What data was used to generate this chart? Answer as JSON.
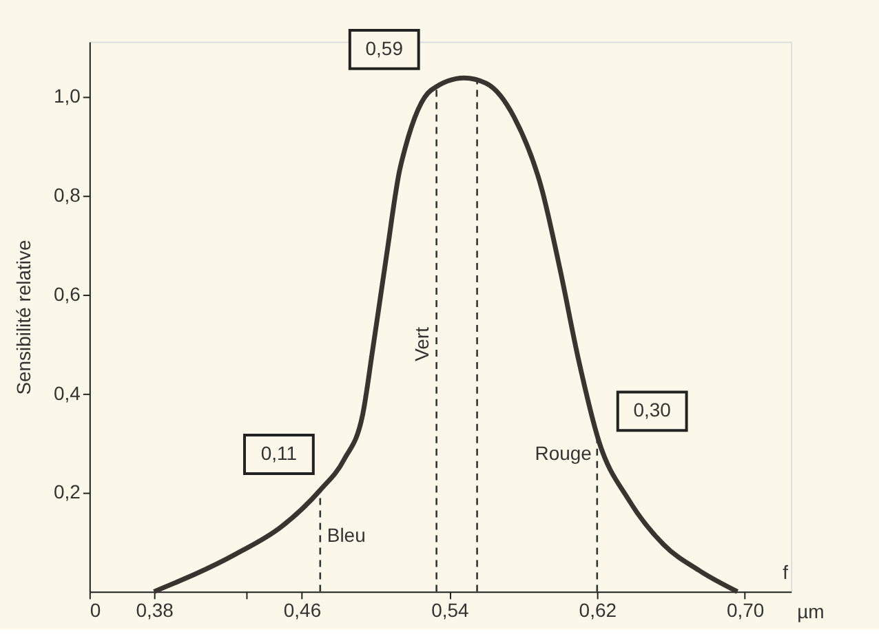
{
  "chart_data": {
    "type": "line",
    "ylabel": "Sensibilité relative",
    "xlabel": "µm",
    "x": [
      0.38,
      0.4244,
      0.449,
      0.47,
      0.483,
      0.493,
      0.4985,
      0.506,
      0.513,
      0.516,
      0.53,
      0.548,
      0.56,
      0.575,
      0.59,
      0.6,
      0.61,
      0.621,
      0.637,
      0.656,
      0.676,
      0.696
    ],
    "series": [
      {
        "color": "#3a3430",
        "values": [
          0.0,
          0.076,
          0.131,
          0.205,
          0.267,
          0.357,
          0.49,
          0.68,
          0.85,
          0.895,
          1.012,
          1.037,
          1.026,
          0.958,
          0.813,
          0.649,
          0.467,
          0.303,
          0.186,
          0.095,
          0.041,
          0.0
        ]
      }
    ],
    "xlim": [
      0.345,
      0.725
    ],
    "xticks": [
      {
        "value": 0.345,
        "label": "0"
      },
      {
        "value": 0.38,
        "label": "0,38"
      },
      {
        "value": 0.43,
        "label": null
      },
      {
        "value": 0.46,
        "label": "0,46"
      },
      {
        "value": 0.54,
        "label": "0,54"
      },
      {
        "value": 0.62,
        "label": "0,62"
      },
      {
        "value": 0.7,
        "label": "0,70"
      }
    ],
    "ylim": [
      0,
      1.11
    ],
    "yticks": [
      {
        "value": 0.2,
        "label": "0,2"
      },
      {
        "value": 0.4,
        "label": "0,4"
      },
      {
        "value": 0.6,
        "label": "0,6"
      },
      {
        "value": 0.8,
        "label": "0,8"
      },
      {
        "value": 1.0,
        "label": "1,0"
      }
    ],
    "ref_lines": [
      {
        "axis": "x",
        "value": 0.47,
        "label": "Bleu",
        "line_style": "dashed"
      },
      {
        "axis": "x",
        "value": 0.533,
        "label": "Vert",
        "line_style": "dashed"
      },
      {
        "axis": "x",
        "value": 0.555,
        "label": null,
        "line_style": "dashed"
      },
      {
        "axis": "x",
        "value": 0.62,
        "label": "Rouge",
        "line_style": "dashed"
      }
    ],
    "annotations": [
      {
        "text": "0,11",
        "x": 0.47,
        "y": 0.205
      },
      {
        "text": "0,59",
        "x": 0.533,
        "y": 1.0
      },
      {
        "text": "0,30",
        "x": 0.62,
        "y": 0.303
      },
      "f"
    ],
    "grid": false,
    "line_style": "solid",
    "marker": "none"
  }
}
